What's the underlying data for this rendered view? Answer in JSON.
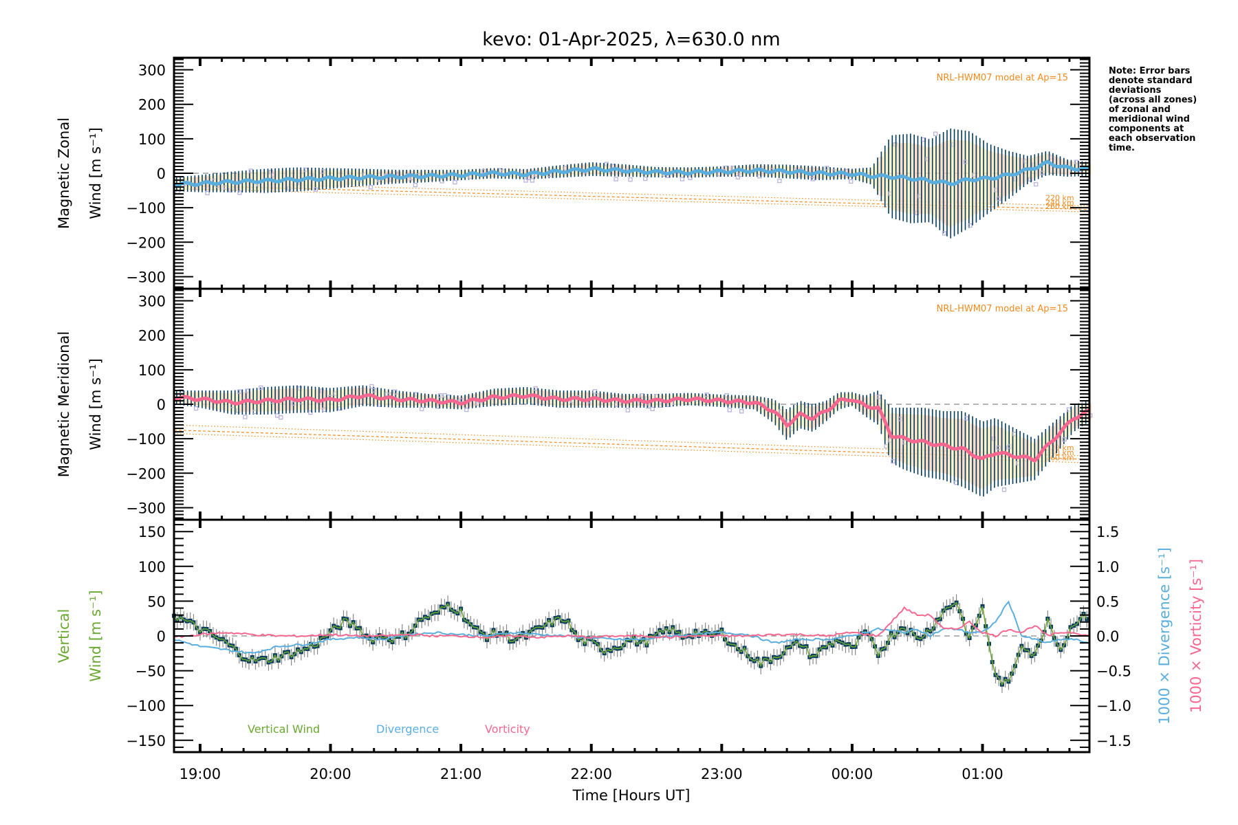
{
  "chart_data": [
    {
      "type": "line",
      "panel": "magnetic-zonal",
      "title": "kevo: 01-Apr-2025, λ=630.0 nm",
      "ylabel_line1": "Magnetic Zonal",
      "ylabel_line2": "Wind [m s⁻¹]",
      "xlabel": "Time [Hours UT]",
      "xlim_hours": [
        18.8,
        25.82
      ],
      "ylim": [
        -335,
        335
      ],
      "yticks": [
        -300,
        -200,
        -100,
        0,
        100,
        200,
        300
      ],
      "model_label": "NRL-HWM07 model at Ap=15",
      "error_bar_color": "#003a5c",
      "series_color": "#5aaede",
      "scatter_color": "#b7b3dd",
      "x_hours": [
        18.8,
        19.0,
        19.25,
        19.5,
        19.75,
        20.0,
        20.25,
        20.5,
        20.75,
        21.0,
        21.25,
        21.5,
        21.75,
        22.0,
        22.25,
        22.5,
        22.75,
        23.0,
        23.25,
        23.5,
        23.75,
        24.0,
        24.15,
        24.3,
        24.45,
        24.6,
        24.75,
        24.9,
        25.05,
        25.2,
        25.35,
        25.5,
        25.65,
        25.82
      ],
      "values": [
        -32,
        -30,
        -25,
        -22,
        -18,
        -15,
        -12,
        -10,
        -8,
        -5,
        0,
        -3,
        5,
        12,
        8,
        3,
        2,
        5,
        8,
        5,
        0,
        -2,
        -8,
        -10,
        -15,
        -22,
        -30,
        -18,
        -15,
        -5,
        10,
        30,
        15,
        12
      ],
      "errors": [
        20,
        25,
        30,
        35,
        35,
        30,
        25,
        20,
        18,
        15,
        15,
        15,
        18,
        20,
        18,
        15,
        15,
        15,
        18,
        20,
        20,
        15,
        25,
        120,
        130,
        120,
        160,
        140,
        100,
        70,
        40,
        35,
        25,
        20
      ],
      "model_altitudes": [
        {
          "label": "220 km",
          "start": -25,
          "end": -95
        },
        {
          "label": "240 km",
          "start": -35,
          "end": -105
        },
        {
          "label": "260 km",
          "start": -45,
          "end": -112
        }
      ]
    },
    {
      "type": "line",
      "panel": "magnetic-meridional",
      "ylabel_line1": "Magnetic Meridional",
      "ylabel_line2": "Wind [m s⁻¹]",
      "ylim": [
        -335,
        335
      ],
      "yticks": [
        -300,
        -200,
        -100,
        0,
        100,
        200,
        300
      ],
      "model_label": "NRL-HWM07 model at Ap=15",
      "series_color": "#f7678f",
      "error_bar_color": "#003a5c",
      "scatter_color": "#b7b3dd",
      "x_hours": [
        18.8,
        19.0,
        19.25,
        19.5,
        19.75,
        20.0,
        20.25,
        20.5,
        20.75,
        21.0,
        21.25,
        21.5,
        21.75,
        22.0,
        22.25,
        22.5,
        22.75,
        23.0,
        23.25,
        23.4,
        23.5,
        23.6,
        23.7,
        23.8,
        23.9,
        24.0,
        24.1,
        24.2,
        24.3,
        24.4,
        24.55,
        24.7,
        24.85,
        25.0,
        25.1,
        25.25,
        25.4,
        25.55,
        25.7,
        25.82
      ],
      "values": [
        20,
        15,
        5,
        10,
        15,
        12,
        25,
        15,
        10,
        5,
        20,
        25,
        15,
        15,
        10,
        10,
        15,
        10,
        5,
        -20,
        -60,
        -30,
        -40,
        -20,
        10,
        15,
        -5,
        -10,
        -90,
        -100,
        -110,
        -120,
        -130,
        -160,
        -140,
        -150,
        -160,
        -100,
        -40,
        -20
      ],
      "errors": [
        20,
        25,
        35,
        40,
        40,
        35,
        30,
        25,
        20,
        20,
        25,
        25,
        25,
        25,
        20,
        20,
        18,
        18,
        20,
        35,
        45,
        40,
        40,
        30,
        25,
        20,
        30,
        50,
        80,
        90,
        100,
        100,
        110,
        110,
        100,
        80,
        60,
        50,
        40,
        30
      ],
      "model_altitudes": [
        {
          "label": "220 km",
          "start": -60,
          "end": -150
        },
        {
          "label": "240 km",
          "start": -75,
          "end": -160
        },
        {
          "label": "260 km",
          "start": -85,
          "end": -170
        }
      ]
    },
    {
      "type": "line",
      "panel": "vertical-divergence-vorticity",
      "ylabel_line1": "Vertical",
      "ylabel_line2": "Wind [m s⁻¹]",
      "ylim": [
        -167,
        167
      ],
      "yticks": [
        -150,
        -100,
        -50,
        0,
        50,
        100,
        150
      ],
      "y2label_div": "1000 × Divergence [s⁻¹]",
      "y2label_vort": "1000 × Vorticity [s⁻¹]",
      "y2lim": [
        -1.67,
        1.67
      ],
      "y2ticks": [
        "-1.5",
        "-1.0",
        "-0.5",
        "0.0",
        "0.5",
        "1.0",
        "1.5"
      ],
      "y2tick_values": [
        -1.5,
        -1.0,
        -0.5,
        0.0,
        0.5,
        1.0,
        1.5
      ],
      "xticks": [
        "19:00",
        "20:00",
        "21:00",
        "22:00",
        "23:00",
        "00:00",
        "01:00"
      ],
      "xtick_hours": [
        19,
        20,
        21,
        22,
        23,
        24,
        25
      ],
      "legend": [
        {
          "label": "Vertical Wind",
          "color": "#6aa832"
        },
        {
          "label": "Divergence",
          "color": "#5aaede"
        },
        {
          "label": "Vorticity",
          "color": "#f7678f"
        }
      ],
      "series": [
        {
          "name": "Vertical Wind",
          "color": "#6aa832",
          "marker_color": "#0b3d5c",
          "x_hours": [
            18.8,
            18.9,
            19.0,
            19.1,
            19.2,
            19.3,
            19.4,
            19.5,
            19.6,
            19.7,
            19.8,
            19.9,
            20.0,
            20.1,
            20.2,
            20.3,
            20.4,
            20.5,
            20.6,
            20.7,
            20.8,
            20.9,
            21.0,
            21.1,
            21.2,
            21.3,
            21.4,
            21.5,
            21.6,
            21.7,
            21.8,
            21.9,
            22.0,
            22.1,
            22.2,
            22.3,
            22.4,
            22.5,
            22.6,
            22.7,
            22.8,
            22.9,
            23.0,
            23.1,
            23.2,
            23.3,
            23.4,
            23.5,
            23.6,
            23.7,
            23.8,
            23.9,
            24.0,
            24.1,
            24.2,
            24.3,
            24.4,
            24.5,
            24.6,
            24.7,
            24.8,
            24.9,
            25.0,
            25.1,
            25.2,
            25.3,
            25.4,
            25.5,
            25.6,
            25.7,
            25.82
          ],
          "values": [
            30,
            20,
            10,
            0,
            -10,
            -25,
            -35,
            -35,
            -30,
            -25,
            -20,
            -10,
            5,
            20,
            15,
            -5,
            0,
            -5,
            5,
            25,
            30,
            45,
            35,
            10,
            0,
            5,
            -5,
            0,
            10,
            20,
            25,
            -5,
            -10,
            -20,
            -15,
            -5,
            -10,
            0,
            10,
            0,
            5,
            0,
            5,
            -15,
            -25,
            -40,
            -30,
            -20,
            -10,
            -30,
            -15,
            -5,
            -20,
            5,
            -25,
            0,
            15,
            -5,
            10,
            35,
            50,
            -5,
            40,
            -60,
            -70,
            -10,
            -30,
            25,
            -20,
            20,
            30
          ]
        },
        {
          "name": "Divergence",
          "color": "#5aaede",
          "x_hours": [
            18.8,
            19.0,
            19.2,
            19.4,
            19.6,
            19.8,
            20.0,
            20.2,
            20.4,
            20.6,
            20.8,
            21.0,
            21.2,
            21.4,
            21.6,
            21.8,
            22.0,
            22.2,
            22.4,
            22.6,
            22.8,
            23.0,
            23.2,
            23.4,
            23.6,
            23.8,
            24.0,
            24.2,
            24.4,
            24.5,
            24.6,
            24.7,
            24.8,
            24.9,
            25.0,
            25.1,
            25.2,
            25.3,
            25.4,
            25.5,
            25.6,
            25.7,
            25.82
          ],
          "values": [
            -0.05,
            -0.15,
            -0.2,
            -0.25,
            -0.15,
            -0.12,
            -0.05,
            -0.02,
            -0.05,
            0.02,
            0.05,
            0.02,
            0.0,
            0.05,
            0.02,
            0.0,
            -0.03,
            -0.05,
            -0.05,
            0.0,
            0.02,
            0.05,
            0.02,
            -0.1,
            -0.05,
            -0.05,
            0.0,
            0.1,
            0.05,
            0.1,
            0.0,
            0.1,
            0.1,
            0.05,
            0.05,
            0.2,
            0.5,
            0.0,
            -0.05,
            -0.1,
            -0.05,
            -0.05,
            -0.1
          ]
        },
        {
          "name": "Vorticity",
          "color": "#f7678f",
          "x_hours": [
            18.8,
            19.0,
            19.2,
            19.4,
            19.6,
            19.8,
            20.0,
            20.2,
            20.4,
            20.6,
            20.8,
            21.0,
            21.2,
            21.4,
            21.6,
            21.8,
            22.0,
            22.2,
            22.4,
            22.6,
            22.8,
            23.0,
            23.2,
            23.4,
            23.6,
            23.8,
            24.0,
            24.2,
            24.3,
            24.4,
            24.5,
            24.6,
            24.7,
            24.8,
            24.9,
            25.0,
            25.1,
            25.2,
            25.3,
            25.4,
            25.5,
            25.6,
            25.7,
            25.82
          ],
          "values": [
            -0.02,
            0.02,
            0.05,
            0.02,
            0.0,
            0.0,
            0.02,
            0.0,
            0.0,
            0.02,
            0.0,
            0.0,
            -0.02,
            0.0,
            -0.02,
            0.0,
            -0.02,
            0.0,
            0.0,
            -0.02,
            0.0,
            0.0,
            0.0,
            0.02,
            0.02,
            0.0,
            0.05,
            0.0,
            0.2,
            0.4,
            0.3,
            0.3,
            0.1,
            0.1,
            0.2,
            0.05,
            0.0,
            0.1,
            0.05,
            0.15,
            0.0,
            0.05,
            0.05,
            0.0
          ]
        }
      ]
    }
  ],
  "note": {
    "lines": [
      "Note: Error bars",
      "denote standard",
      "deviations",
      "(across all zones)",
      "of zonal and",
      "meridional wind",
      "components at",
      "each observation",
      "time."
    ]
  }
}
